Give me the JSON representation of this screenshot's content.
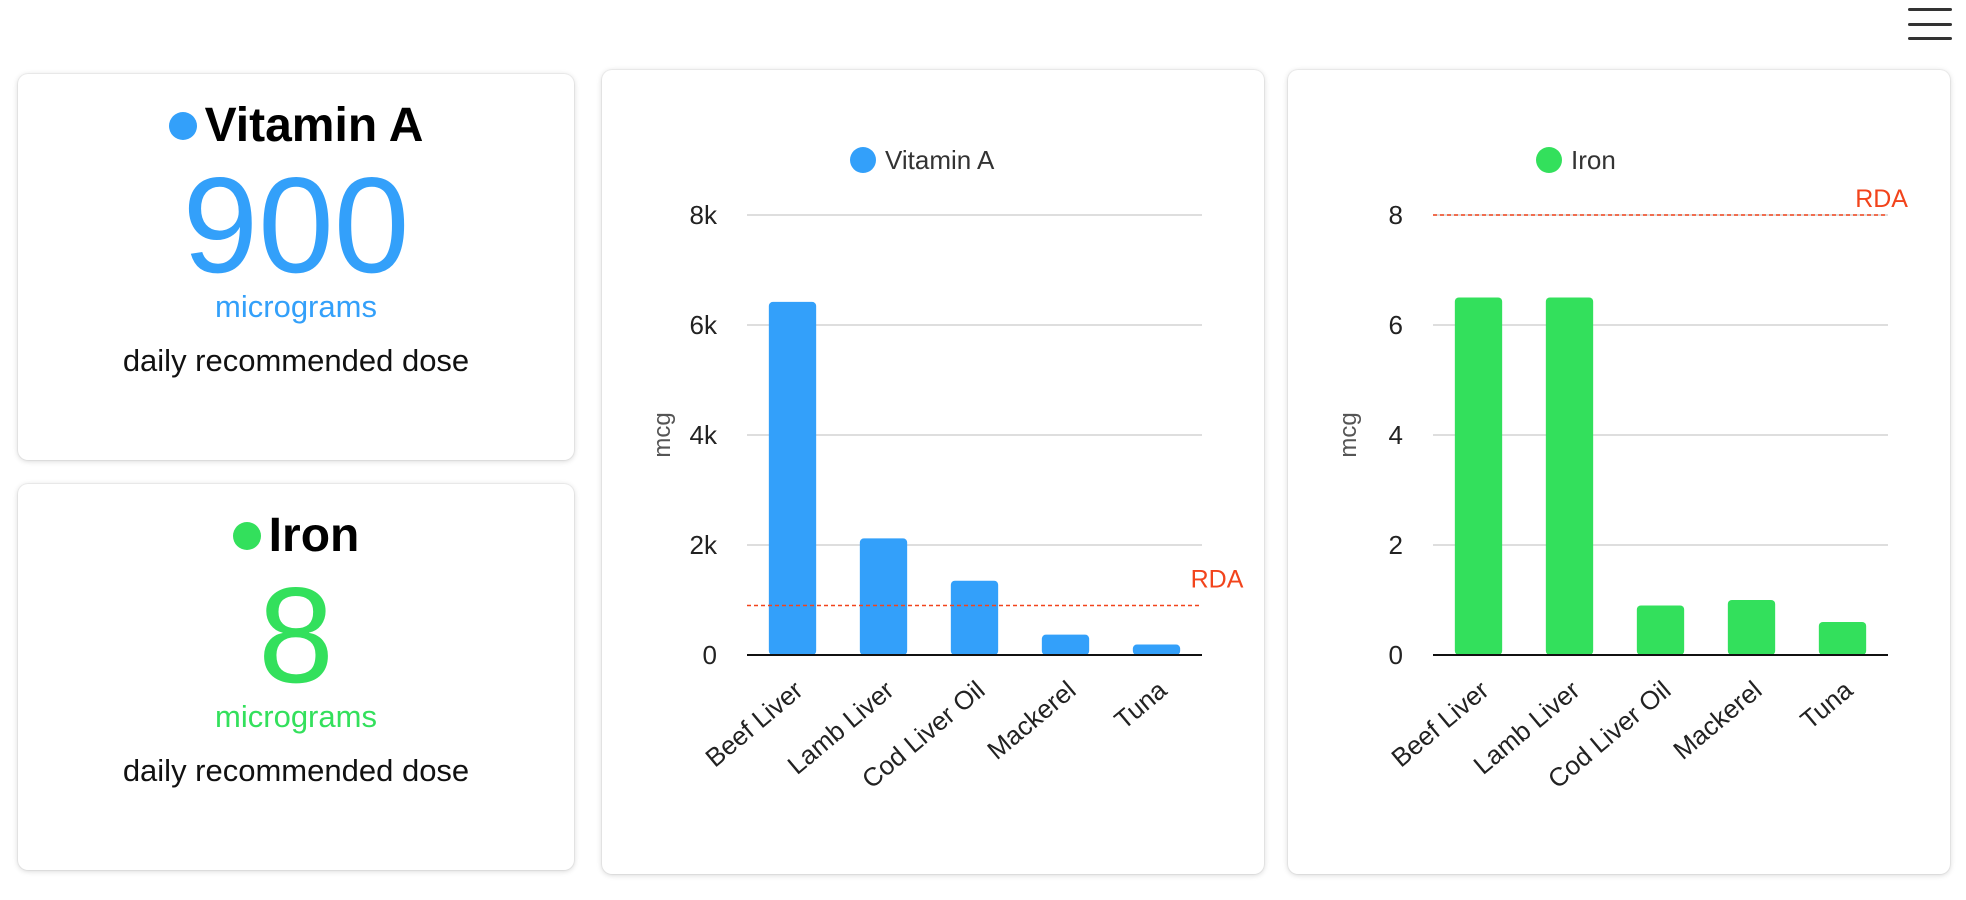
{
  "menu": {
    "icon": "hamburger-menu-icon"
  },
  "dose_cards": [
    {
      "name": "Vitamin A",
      "value": "900",
      "unit": "micrograms",
      "description": "daily recommended dose",
      "color": "#33a0fa"
    },
    {
      "name": "Iron",
      "value": "8",
      "unit": "micrograms",
      "description": "daily recommended dose",
      "color": "#33e05c"
    }
  ],
  "chart_data": [
    {
      "type": "bar",
      "title": "",
      "legend": "Vitamin A",
      "legend_position": "top-center",
      "color": "#33a0fa",
      "categories": [
        "Beef Liver",
        "Lamb Liver",
        "Cod Liver Oil",
        "Mackerel",
        "Tuna"
      ],
      "values": [
        6420,
        2120,
        1350,
        370,
        190
      ],
      "xlabel": "",
      "ylabel": "mcg",
      "ylim": [
        0,
        8000
      ],
      "yticks": [
        0,
        2000,
        4000,
        6000,
        8000
      ],
      "ytick_labels": [
        "0",
        "2k",
        "4k",
        "6k",
        "8k"
      ],
      "grid": true,
      "reference_line": {
        "label": "RDA",
        "value": 900,
        "color": "#f2441c"
      }
    },
    {
      "type": "bar",
      "title": "",
      "legend": "Iron",
      "legend_position": "top-center",
      "color": "#33e05c",
      "categories": [
        "Beef Liver",
        "Lamb Liver",
        "Cod Liver Oil",
        "Mackerel",
        "Tuna"
      ],
      "values": [
        6.5,
        6.5,
        0.9,
        1.0,
        0.6
      ],
      "xlabel": "",
      "ylabel": "mcg",
      "ylim": [
        0,
        8
      ],
      "yticks": [
        0,
        2,
        4,
        6,
        8
      ],
      "ytick_labels": [
        "0",
        "2",
        "4",
        "6",
        "8"
      ],
      "grid": true,
      "reference_line": {
        "label": "RDA",
        "value": 8,
        "color": "#f2441c"
      }
    }
  ]
}
